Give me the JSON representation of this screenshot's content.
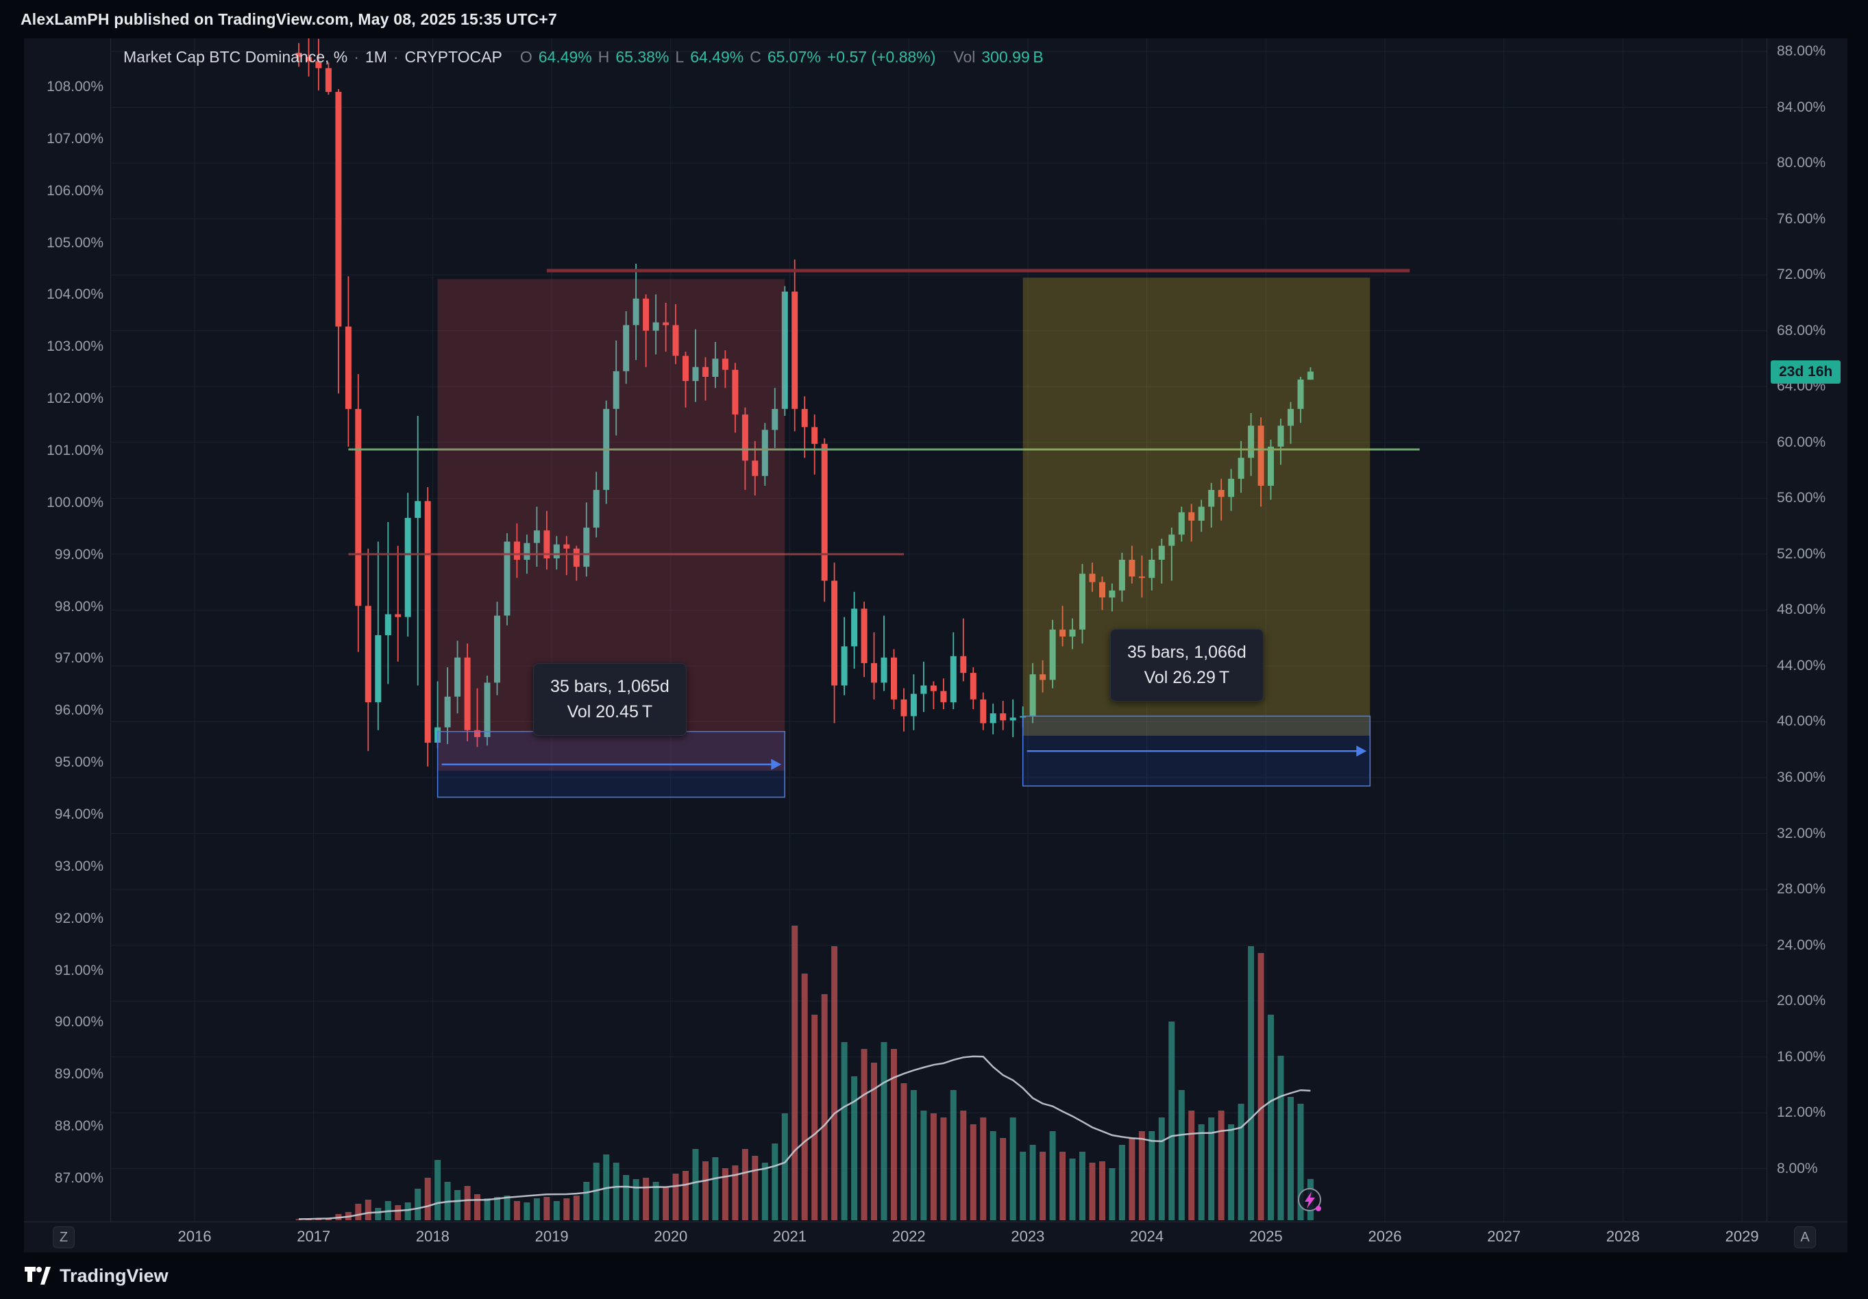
{
  "header": {
    "published_line": "AlexLamPH published on TradingView.com, May 08, 2025 15:35 UTC+7"
  },
  "legend": {
    "symbol": "Market Cap BTC Dominance, %",
    "separator": "·",
    "interval": "1M",
    "exchange": "CRYPTOCAP",
    "o_label": "O",
    "o": "64.49%",
    "h_label": "H",
    "h": "65.38%",
    "l_label": "L",
    "l": "64.49%",
    "c_label": "C",
    "c": "65.07%",
    "change": "+0.57 (+0.88%)",
    "vol_label": "Vol",
    "vol": "300.99 B"
  },
  "price_scale_left": {
    "labels": [
      "108.00%",
      "107.00%",
      "106.00%",
      "105.00%",
      "104.00%",
      "103.00%",
      "102.00%",
      "101.00%",
      "100.00%",
      "99.00%",
      "98.00%",
      "97.00%",
      "96.00%",
      "95.00%",
      "94.00%",
      "93.00%",
      "92.00%",
      "91.00%",
      "90.00%",
      "89.00%",
      "88.00%",
      "87.00%"
    ]
  },
  "price_scale_right": {
    "labels": [
      "88.00%",
      "84.00%",
      "80.00%",
      "76.00%",
      "72.00%",
      "68.00%",
      "64.00%",
      "60.00%",
      "56.00%",
      "52.00%",
      "48.00%",
      "44.00%",
      "40.00%",
      "36.00%",
      "32.00%",
      "28.00%",
      "24.00%",
      "20.00%",
      "16.00%",
      "12.00%",
      "8.00%"
    ],
    "countdown": "23d 16h"
  },
  "time_scale": {
    "years": [
      "2016",
      "2017",
      "2018",
      "2019",
      "2020",
      "2021",
      "2022",
      "2023",
      "2024",
      "2025",
      "2026",
      "2027",
      "2028",
      "2029"
    ],
    "left_button": "Z",
    "right_button": "A"
  },
  "range_tooltips": [
    {
      "line1": "35 bars, 1,065d",
      "line2": "Vol 20.45 T"
    },
    {
      "line1": "35 bars, 1,066d",
      "line2": "Vol 26.29 T"
    }
  ],
  "footer": {
    "brand": "TradingView"
  },
  "colors": {
    "background": "#05080e",
    "panel": "#0f141e",
    "grid": "#1b2230",
    "axis_text": "#9aa0ab",
    "up": "#3fb8ab",
    "down": "#f0524e",
    "vol_up": "rgba(47,143,132,0.75)",
    "vol_down": "rgba(181,77,80,0.8)",
    "vol_ma": "#c9cdd6",
    "accent_teal": "#2ebfa5",
    "badge_bg": "#22ab94",
    "tooltip_bg": "#1d212e"
  },
  "chart_data": {
    "type": "candlestick",
    "title": "Market Cap BTC Dominance, %",
    "interval": "1M",
    "exchange": "CRYPTOCAP",
    "right_axis": {
      "min": 8,
      "max": 88,
      "tick_step": 4,
      "unit": "%"
    },
    "left_axis": {
      "min": 87,
      "max": 108,
      "tick_step": 1,
      "unit": "%"
    },
    "x_axis": {
      "start_year": 2016,
      "end_year": 2029
    },
    "volume_unit": "B",
    "volume_ma_period": 20,
    "candles_columns": [
      "month",
      "open",
      "high",
      "low",
      "close",
      "volume"
    ],
    "candles": [
      [
        "2016-11",
        87.9,
        88.6,
        86.9,
        87.6,
        8
      ],
      [
        "2016-12",
        87.6,
        89.2,
        86.2,
        87.3,
        10
      ],
      [
        "2017-01",
        87.3,
        88.9,
        85.2,
        86.8,
        15
      ],
      [
        "2017-02",
        86.8,
        87.2,
        84.9,
        85.1,
        18
      ],
      [
        "2017-03",
        85.1,
        85.3,
        63.5,
        68.3,
        45
      ],
      [
        "2017-04",
        68.3,
        71.9,
        59.7,
        62.4,
        60
      ],
      [
        "2017-05",
        62.4,
        64.9,
        45.0,
        48.3,
        120
      ],
      [
        "2017-06",
        48.3,
        52.4,
        37.9,
        41.4,
        150
      ],
      [
        "2017-07",
        41.4,
        52.9,
        39.4,
        46.2,
        90
      ],
      [
        "2017-08",
        46.2,
        54.3,
        42.7,
        47.7,
        140
      ],
      [
        "2017-09",
        47.7,
        52.6,
        44.3,
        47.5,
        110
      ],
      [
        "2017-10",
        47.5,
        56.4,
        46.1,
        54.6,
        130
      ],
      [
        "2017-11",
        54.6,
        61.9,
        42.6,
        55.8,
        230
      ],
      [
        "2017-12",
        55.8,
        56.8,
        36.8,
        38.5,
        310
      ],
      [
        "2018-01",
        38.5,
        42.9,
        38.1,
        39.6,
        440
      ],
      [
        "2018-02",
        39.6,
        43.9,
        38.4,
        41.8,
        280
      ],
      [
        "2018-03",
        41.8,
        45.8,
        40.6,
        44.6,
        220
      ],
      [
        "2018-04",
        44.6,
        45.6,
        38.6,
        39.4,
        250
      ],
      [
        "2018-05",
        39.4,
        42.4,
        38.2,
        38.9,
        190
      ],
      [
        "2018-06",
        38.9,
        43.3,
        38.3,
        42.8,
        160
      ],
      [
        "2018-07",
        42.8,
        48.6,
        41.9,
        47.6,
        170
      ],
      [
        "2018-08",
        47.6,
        53.5,
        46.9,
        52.9,
        180
      ],
      [
        "2018-09",
        52.9,
        54.2,
        50.3,
        51.6,
        140
      ],
      [
        "2018-10",
        51.6,
        53.4,
        50.6,
        52.8,
        130
      ],
      [
        "2018-11",
        52.8,
        55.4,
        51.1,
        53.7,
        160
      ],
      [
        "2018-12",
        53.7,
        55.1,
        50.9,
        51.7,
        170
      ],
      [
        "2019-01",
        51.7,
        53.3,
        50.9,
        52.7,
        140
      ],
      [
        "2019-02",
        52.7,
        53.3,
        50.5,
        52.4,
        160
      ],
      [
        "2019-03",
        52.4,
        52.6,
        50.1,
        51.1,
        180
      ],
      [
        "2019-04",
        51.1,
        55.7,
        50.4,
        53.9,
        280
      ],
      [
        "2019-05",
        53.9,
        57.9,
        53.2,
        56.6,
        420
      ],
      [
        "2019-06",
        56.6,
        63.0,
        55.6,
        62.4,
        480
      ],
      [
        "2019-07",
        62.4,
        67.3,
        60.5,
        65.1,
        420
      ],
      [
        "2019-08",
        65.1,
        69.4,
        64.2,
        68.4,
        330
      ],
      [
        "2019-09",
        68.4,
        72.8,
        65.9,
        70.3,
        300
      ],
      [
        "2019-10",
        70.3,
        70.6,
        65.4,
        68.0,
        310
      ],
      [
        "2019-11",
        68.0,
        70.6,
        66.3,
        68.6,
        280
      ],
      [
        "2019-12",
        68.6,
        70.0,
        66.5,
        68.4,
        240
      ],
      [
        "2020-01",
        68.4,
        69.9,
        65.6,
        66.2,
        340
      ],
      [
        "2020-02",
        66.2,
        66.5,
        62.5,
        64.4,
        360
      ],
      [
        "2020-03",
        64.4,
        68.1,
        62.9,
        65.4,
        520
      ],
      [
        "2020-04",
        65.4,
        66.1,
        63.0,
        64.7,
        430
      ],
      [
        "2020-05",
        64.7,
        67.2,
        63.9,
        66.0,
        460
      ],
      [
        "2020-06",
        66.0,
        66.6,
        63.9,
        65.2,
        380
      ],
      [
        "2020-07",
        65.2,
        65.7,
        60.7,
        62.0,
        400
      ],
      [
        "2020-08",
        62.0,
        62.5,
        56.6,
        58.7,
        520
      ],
      [
        "2020-09",
        58.7,
        60.1,
        56.2,
        57.6,
        470
      ],
      [
        "2020-10",
        57.6,
        61.4,
        56.9,
        60.9,
        420
      ],
      [
        "2020-11",
        60.9,
        63.9,
        59.6,
        62.4,
        560
      ],
      [
        "2020-12",
        62.4,
        71.2,
        61.9,
        70.8,
        780
      ],
      [
        "2021-01",
        70.8,
        73.1,
        60.8,
        62.4,
        2150
      ],
      [
        "2021-02",
        62.4,
        63.3,
        58.9,
        61.1,
        1800
      ],
      [
        "2021-03",
        61.1,
        62.0,
        57.7,
        59.9,
        1500
      ],
      [
        "2021-04",
        59.9,
        60.3,
        48.6,
        50.1,
        1650
      ],
      [
        "2021-05",
        50.1,
        51.4,
        39.9,
        42.6,
        2000
      ],
      [
        "2021-06",
        42.6,
        47.5,
        41.9,
        45.4,
        1300
      ],
      [
        "2021-07",
        45.4,
        49.3,
        43.8,
        48.1,
        1050
      ],
      [
        "2021-08",
        48.1,
        48.6,
        43.2,
        44.2,
        1250
      ],
      [
        "2021-09",
        44.2,
        46.4,
        41.6,
        42.8,
        1150
      ],
      [
        "2021-10",
        42.8,
        47.6,
        42.2,
        44.6,
        1300
      ],
      [
        "2021-11",
        44.6,
        45.2,
        40.9,
        41.6,
        1250
      ],
      [
        "2021-12",
        41.6,
        42.4,
        39.3,
        40.4,
        1000
      ],
      [
        "2022-01",
        40.4,
        43.4,
        39.4,
        42.0,
        950
      ],
      [
        "2022-02",
        42.0,
        44.3,
        40.7,
        42.6,
        800
      ],
      [
        "2022-03",
        42.6,
        42.9,
        40.9,
        42.2,
        780
      ],
      [
        "2022-04",
        42.2,
        43.1,
        40.9,
        41.4,
        750
      ],
      [
        "2022-05",
        41.4,
        46.4,
        40.9,
        44.7,
        950
      ],
      [
        "2022-06",
        44.7,
        47.4,
        42.9,
        43.5,
        800
      ],
      [
        "2022-07",
        43.5,
        43.9,
        40.9,
        41.6,
        700
      ],
      [
        "2022-08",
        41.6,
        42.1,
        39.4,
        39.9,
        750
      ],
      [
        "2022-09",
        39.9,
        41.3,
        39.1,
        40.6,
        650
      ],
      [
        "2022-10",
        40.6,
        41.5,
        39.4,
        40.1,
        600
      ],
      [
        "2022-11",
        40.1,
        41.6,
        38.9,
        40.3,
        750
      ],
      [
        "2022-12",
        40.3,
        41.1,
        39.6,
        40.4,
        500
      ],
      [
        "2023-01",
        40.4,
        44.2,
        39.9,
        43.4,
        550
      ],
      [
        "2023-02",
        43.4,
        44.4,
        42.1,
        43.0,
        500
      ],
      [
        "2023-03",
        43.0,
        47.3,
        42.4,
        46.6,
        650
      ],
      [
        "2023-04",
        46.6,
        48.3,
        45.4,
        46.1,
        500
      ],
      [
        "2023-05",
        46.1,
        47.4,
        45.2,
        46.6,
        450
      ],
      [
        "2023-06",
        46.6,
        51.3,
        45.6,
        50.6,
        500
      ],
      [
        "2023-07",
        50.6,
        51.4,
        49.3,
        50.0,
        420
      ],
      [
        "2023-08",
        50.0,
        50.4,
        48.0,
        48.9,
        430
      ],
      [
        "2023-09",
        48.9,
        49.9,
        47.9,
        49.4,
        380
      ],
      [
        "2023-10",
        49.4,
        52.1,
        48.6,
        51.6,
        550
      ],
      [
        "2023-11",
        51.6,
        52.6,
        49.9,
        50.4,
        600
      ],
      [
        "2023-12",
        50.4,
        51.9,
        48.9,
        50.3,
        650
      ],
      [
        "2024-01",
        50.3,
        52.4,
        49.4,
        51.6,
        650
      ],
      [
        "2024-02",
        51.6,
        53.1,
        49.9,
        52.6,
        750
      ],
      [
        "2024-03",
        52.6,
        53.9,
        50.1,
        53.4,
        1450
      ],
      [
        "2024-04",
        53.4,
        55.4,
        52.9,
        55.0,
        950
      ],
      [
        "2024-05",
        55.0,
        55.6,
        52.9,
        54.4,
        800
      ],
      [
        "2024-06",
        54.4,
        55.9,
        53.6,
        55.4,
        700
      ],
      [
        "2024-07",
        55.4,
        57.1,
        53.9,
        56.6,
        750
      ],
      [
        "2024-08",
        56.6,
        57.4,
        54.4,
        56.1,
        800
      ],
      [
        "2024-09",
        56.1,
        58.1,
        55.1,
        57.4,
        700
      ],
      [
        "2024-10",
        57.4,
        60.1,
        56.4,
        58.9,
        850
      ],
      [
        "2024-11",
        58.9,
        62.1,
        57.6,
        61.2,
        2000
      ],
      [
        "2024-12",
        61.2,
        61.8,
        55.4,
        56.9,
        1950
      ],
      [
        "2025-01",
        56.9,
        60.2,
        55.9,
        59.7,
        1500
      ],
      [
        "2025-02",
        59.7,
        61.7,
        58.4,
        61.2,
        1200
      ],
      [
        "2025-03",
        61.2,
        62.9,
        59.9,
        62.4,
        900
      ],
      [
        "2025-04",
        62.4,
        64.7,
        61.4,
        64.5,
        850
      ],
      [
        "2025-05",
        64.49,
        65.38,
        64.49,
        65.07,
        301
      ]
    ],
    "drawings": {
      "hlines": [
        {
          "price": 72.3,
          "from": "2018-12",
          "to": "2026-03",
          "color": "#7e2d36",
          "width": 5
        },
        {
          "price": 59.5,
          "from": "2017-04",
          "to": "2026-04",
          "color": "#6fa573",
          "width": 3
        },
        {
          "price": 52.0,
          "from": "2017-04",
          "to": "2021-12",
          "color": "#8a3b40",
          "width": 3
        }
      ],
      "shaded_boxes": [
        {
          "from": "2018-01",
          "to": "2020-12",
          "price_top": 71.7,
          "price_bottom": 36.5,
          "fill": "rgba(240,82,90,0.20)"
        },
        {
          "from": "2022-12",
          "to": "2025-11",
          "price_top": 71.8,
          "price_bottom": 39.0,
          "fill": "rgba(193,166,47,0.30)"
        }
      ],
      "date_ranges": [
        {
          "from": "2018-01",
          "to": "2020-12",
          "price_top": 39.3,
          "price_bottom": 34.6,
          "fill": "rgba(41,98,255,0.12)",
          "stroke": "#4a7de8"
        },
        {
          "from": "2022-12",
          "to": "2025-11",
          "price_top": 40.4,
          "price_bottom": 35.4,
          "fill": "rgba(41,98,255,0.12)",
          "stroke": "#4a7de8"
        }
      ]
    }
  }
}
